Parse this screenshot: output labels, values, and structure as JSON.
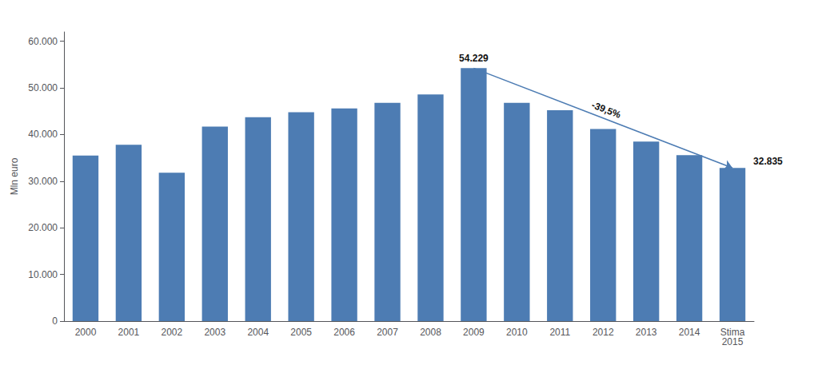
{
  "chart_data": {
    "type": "bar",
    "categories": [
      "2000",
      "2001",
      "2002",
      "2003",
      "2004",
      "2005",
      "2006",
      "2007",
      "2008",
      "2009",
      "2010",
      "2011",
      "2012",
      "2013",
      "2014",
      "Stima\n2015"
    ],
    "values": [
      35500,
      37800,
      31800,
      41700,
      43700,
      44800,
      45600,
      46800,
      48600,
      54229,
      46800,
      45200,
      41200,
      38500,
      35600,
      32835
    ],
    "color": "#4D7CB3",
    "ylabel": "Mln euro",
    "ylim": [
      0,
      62000
    ],
    "yticks": [
      0,
      {
        "value": 10000,
        "label": "10.000"
      },
      {
        "value": 20000,
        "label": "20.000"
      },
      {
        "value": 30000,
        "label": "30.000"
      },
      {
        "value": 40000,
        "label": "40.000"
      },
      {
        "value": 50000,
        "label": "50.000"
      },
      {
        "value": 60000,
        "label": "60.000"
      }
    ],
    "grid": false,
    "annotations": [
      {
        "text": "54.229",
        "x": "2009",
        "y": 54229
      },
      {
        "text": "32.835",
        "x": "Stima\n2015",
        "y": 32835
      },
      {
        "text": "-39,5%",
        "arrow": {
          "from": [
            "2009",
            54229
          ],
          "to": [
            "Stima\n2015",
            32835
          ]
        }
      }
    ]
  }
}
